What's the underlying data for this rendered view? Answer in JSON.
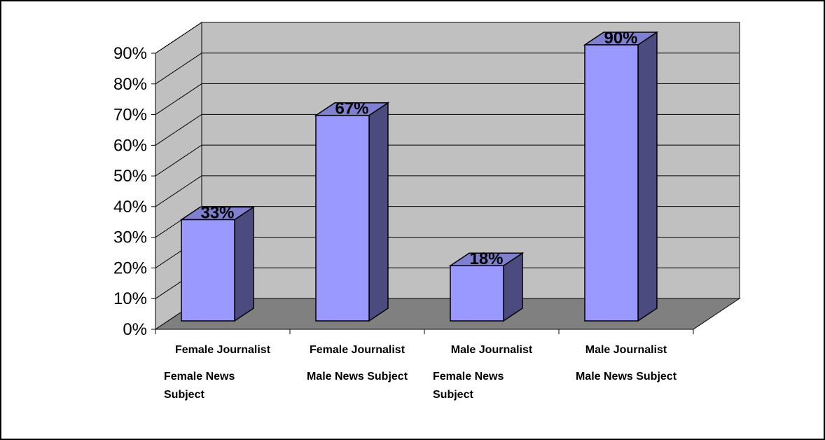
{
  "chart_data": {
    "type": "bar",
    "title": "",
    "xlabel": "",
    "ylabel": "",
    "ylim": [
      0,
      90
    ],
    "y_ticks": [
      "0%",
      "10%",
      "20%",
      "30%",
      "40%",
      "50%",
      "60%",
      "70%",
      "80%",
      "90%"
    ],
    "grid": true,
    "legend": "none",
    "categories": [
      {
        "line1": "Female Journalist",
        "line2": "Female News",
        "line3": "Subject"
      },
      {
        "line1": "Female Journalist",
        "line2": "Male News Subject",
        "line3": ""
      },
      {
        "line1": "Male Journalist",
        "line2": "Female News",
        "line3": "Subject"
      },
      {
        "line1": "Male Journalist",
        "line2": "Male News Subject",
        "line3": ""
      }
    ],
    "values": [
      33,
      67,
      18,
      90
    ],
    "data_labels": [
      "33%",
      "67%",
      "18%",
      "90%"
    ],
    "colors": {
      "bar_front": "#9999ff",
      "bar_side": "#4b4b80",
      "bar_top": "#8080d0",
      "wall": "#c0c0c0",
      "floor": "#808080"
    }
  }
}
